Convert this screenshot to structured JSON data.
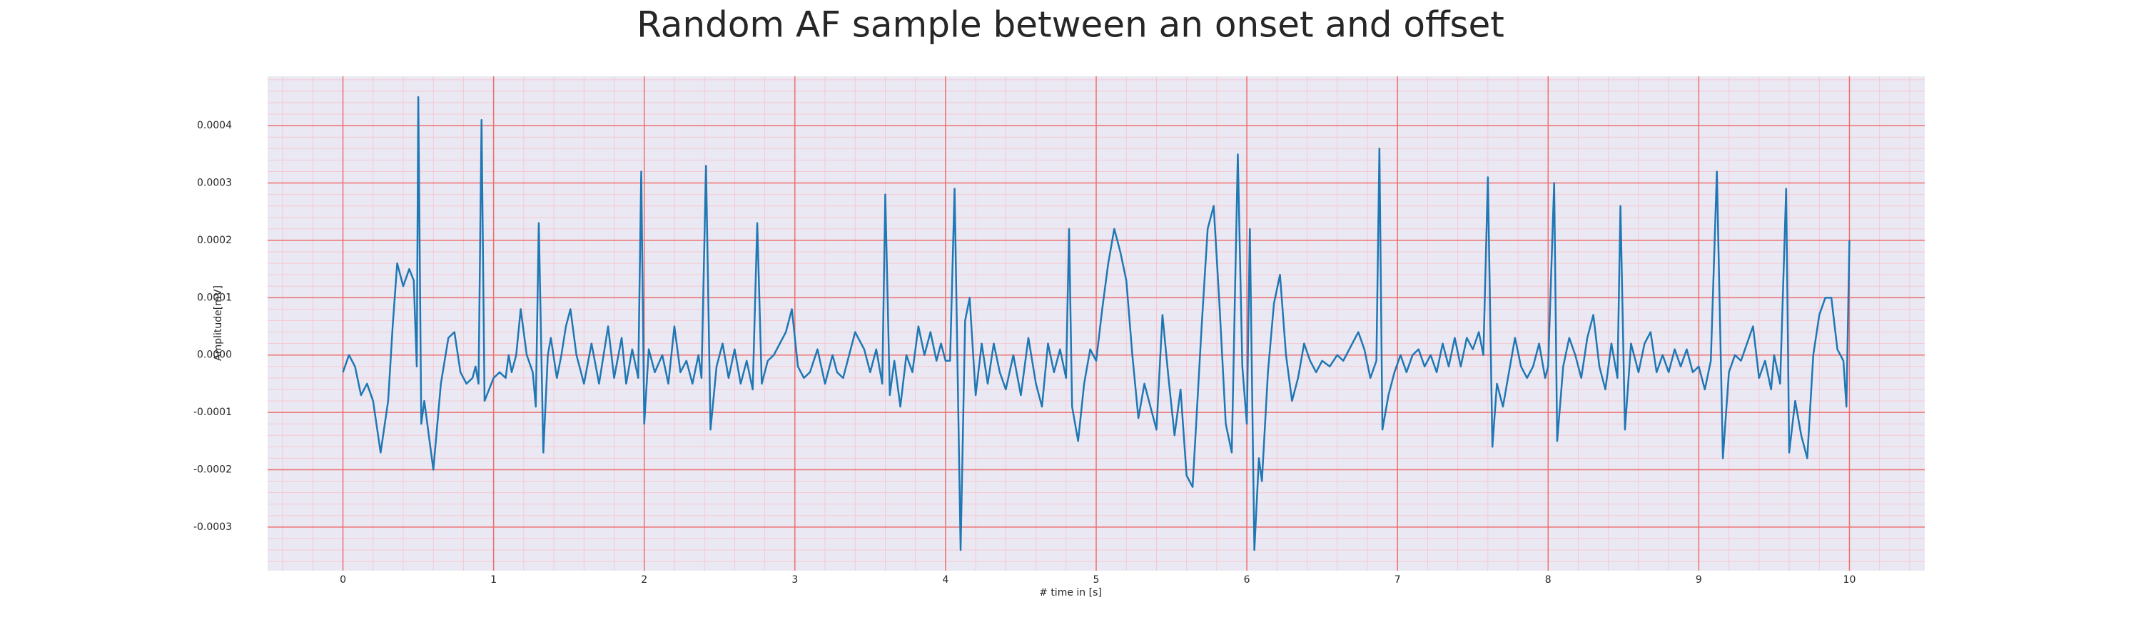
{
  "chart_data": {
    "type": "line",
    "title": "Random AF sample between an onset and offset",
    "x_label": "# time in [s]",
    "y_label": "Amplitude[mV]",
    "color": "#1f77b4",
    "grid": true,
    "minor_grid": true,
    "xlim": [
      -0.5,
      10.5
    ],
    "ylim": [
      -0.000376,
      0.000486
    ],
    "xticks": [
      0,
      1,
      2,
      3,
      4,
      5,
      6,
      7,
      8,
      9,
      10
    ],
    "yticks": [
      -0.0003,
      -0.0002,
      -0.0001,
      {
        "value": 0,
        "label": "0.0000"
      },
      0.0001,
      0.0002,
      0.0003,
      0.0004
    ],
    "x": [
      0,
      0.04,
      0.08,
      0.12,
      0.16,
      0.2,
      0.25,
      0.3,
      0.33,
      0.36,
      0.4,
      0.44,
      0.47,
      0.49,
      0.5,
      0.52,
      0.54,
      0.56,
      0.6,
      0.65,
      0.7,
      0.74,
      0.78,
      0.82,
      0.86,
      0.88,
      0.9,
      0.92,
      0.94,
      0.97,
      1.0,
      1.04,
      1.08,
      1.1,
      1.12,
      1.15,
      1.18,
      1.22,
      1.26,
      1.28,
      1.3,
      1.33,
      1.36,
      1.38,
      1.42,
      1.45,
      1.48,
      1.51,
      1.55,
      1.6,
      1.65,
      1.7,
      1.76,
      1.8,
      1.85,
      1.88,
      1.92,
      1.96,
      1.98,
      2.0,
      2.03,
      2.07,
      2.12,
      2.16,
      2.2,
      2.24,
      2.28,
      2.32,
      2.36,
      2.38,
      2.41,
      2.44,
      2.48,
      2.52,
      2.56,
      2.6,
      2.64,
      2.68,
      2.72,
      2.75,
      2.78,
      2.82,
      2.86,
      2.9,
      2.94,
      2.98,
      3.02,
      3.06,
      3.1,
      3.15,
      3.2,
      3.25,
      3.28,
      3.32,
      3.4,
      3.46,
      3.5,
      3.54,
      3.58,
      3.6,
      3.63,
      3.66,
      3.7,
      3.74,
      3.78,
      3.82,
      3.86,
      3.9,
      3.94,
      3.97,
      4.0,
      4.03,
      4.06,
      4.1,
      4.13,
      4.16,
      4.2,
      4.24,
      4.28,
      4.32,
      4.36,
      4.4,
      4.45,
      4.5,
      4.55,
      4.6,
      4.64,
      4.68,
      4.72,
      4.76,
      4.8,
      4.82,
      4.84,
      4.88,
      4.92,
      4.96,
      5.0,
      5.04,
      5.08,
      5.12,
      5.16,
      5.2,
      5.24,
      5.28,
      5.32,
      5.36,
      5.4,
      5.44,
      5.48,
      5.52,
      5.56,
      5.6,
      5.64,
      5.7,
      5.74,
      5.78,
      5.82,
      5.86,
      5.9,
      5.94,
      5.97,
      6.0,
      6.02,
      6.05,
      6.08,
      6.1,
      6.14,
      6.18,
      6.22,
      6.26,
      6.3,
      6.34,
      6.38,
      6.42,
      6.46,
      6.5,
      6.55,
      6.6,
      6.64,
      6.7,
      6.74,
      6.78,
      6.82,
      6.86,
      6.88,
      6.9,
      6.94,
      6.98,
      7.02,
      7.06,
      7.1,
      7.14,
      7.18,
      7.22,
      7.26,
      7.3,
      7.34,
      7.38,
      7.42,
      7.46,
      7.5,
      7.54,
      7.57,
      7.6,
      7.63,
      7.66,
      7.7,
      7.74,
      7.78,
      7.82,
      7.86,
      7.9,
      7.94,
      7.98,
      8.0,
      8.04,
      8.06,
      8.1,
      8.14,
      8.18,
      8.22,
      8.26,
      8.3,
      8.34,
      8.38,
      8.42,
      8.46,
      8.48,
      8.51,
      8.55,
      8.6,
      8.64,
      8.68,
      8.72,
      8.76,
      8.8,
      8.84,
      8.88,
      8.92,
      8.96,
      9.0,
      9.04,
      9.08,
      9.12,
      9.16,
      9.2,
      9.24,
      9.28,
      9.32,
      9.36,
      9.4,
      9.44,
      9.48,
      9.5,
      9.54,
      9.58,
      9.6,
      9.64,
      9.68,
      9.72,
      9.76,
      9.8,
      9.84,
      9.88,
      9.92,
      9.96,
      9.98,
      10.0
    ],
    "values": [
      -3e-05,
      0.0,
      -2e-05,
      -7e-05,
      -5e-05,
      -8e-05,
      -0.00017,
      -8e-05,
      5e-05,
      0.00016,
      0.00012,
      0.00015,
      0.00013,
      -2e-05,
      0.00045,
      -0.00012,
      -8e-05,
      -0.00012,
      -0.0002,
      -5e-05,
      3e-05,
      4e-05,
      -3e-05,
      -5e-05,
      -4e-05,
      -2e-05,
      -5e-05,
      0.00041,
      -8e-05,
      -6e-05,
      -4e-05,
      -3e-05,
      -4e-05,
      0.0,
      -3e-05,
      0.0,
      8e-05,
      0.0,
      -3e-05,
      -9e-05,
      0.00023,
      -0.00017,
      0.0,
      3e-05,
      -4e-05,
      0.0,
      5e-05,
      8e-05,
      0.0,
      -5e-05,
      2e-05,
      -5e-05,
      5e-05,
      -4e-05,
      3e-05,
      -5e-05,
      1e-05,
      -4e-05,
      0.00032,
      -0.00012,
      1e-05,
      -3e-05,
      0.0,
      -5e-05,
      5e-05,
      -3e-05,
      -1e-05,
      -5e-05,
      0.0,
      -4e-05,
      0.00033,
      -0.00013,
      -2e-05,
      2e-05,
      -4e-05,
      1e-05,
      -5e-05,
      -1e-05,
      -6e-05,
      0.00023,
      -5e-05,
      -1e-05,
      0.0,
      2e-05,
      4e-05,
      8e-05,
      -2e-05,
      -4e-05,
      -3e-05,
      1e-05,
      -5e-05,
      0.0,
      -3e-05,
      -4e-05,
      4e-05,
      1e-05,
      -3e-05,
      1e-05,
      -5e-05,
      0.00028,
      -7e-05,
      -1e-05,
      -9e-05,
      0.0,
      -3e-05,
      5e-05,
      0.0,
      4e-05,
      -1e-05,
      2e-05,
      -1e-05,
      -1e-05,
      0.00029,
      -0.00034,
      6e-05,
      0.0001,
      -7e-05,
      2e-05,
      -5e-05,
      2e-05,
      -3e-05,
      -6e-05,
      0.0,
      -7e-05,
      3e-05,
      -5e-05,
      -9e-05,
      2e-05,
      -3e-05,
      1e-05,
      -4e-05,
      0.00022,
      -9e-05,
      -0.00015,
      -5e-05,
      1e-05,
      -1e-05,
      8e-05,
      0.00016,
      0.00022,
      0.00018,
      0.00013,
      0.0,
      -0.00011,
      -5e-05,
      -9e-05,
      -0.00013,
      7e-05,
      -4e-05,
      -0.00014,
      -6e-05,
      -0.00021,
      -0.00023,
      5e-05,
      0.00022,
      0.00026,
      8e-05,
      -0.00012,
      -0.00017,
      0.00035,
      -2e-05,
      -0.00012,
      0.00022,
      -0.00034,
      -0.00018,
      -0.00022,
      -3e-05,
      9e-05,
      0.00014,
      0.0,
      -8e-05,
      -4e-05,
      2e-05,
      -1e-05,
      -3e-05,
      -1e-05,
      -2e-05,
      0.0,
      -1e-05,
      2e-05,
      4e-05,
      1e-05,
      -4e-05,
      -1e-05,
      0.00036,
      -0.00013,
      -7e-05,
      -3e-05,
      0.0,
      -3e-05,
      0.0,
      1e-05,
      -2e-05,
      0.0,
      -3e-05,
      2e-05,
      -2e-05,
      3e-05,
      -2e-05,
      3e-05,
      1e-05,
      4e-05,
      0.0,
      0.00031,
      -0.00016,
      -5e-05,
      -9e-05,
      -3e-05,
      3e-05,
      -2e-05,
      -4e-05,
      -2e-05,
      2e-05,
      -4e-05,
      -2e-05,
      0.0003,
      -0.00015,
      -2e-05,
      3e-05,
      0.0,
      -4e-05,
      3e-05,
      7e-05,
      -2e-05,
      -6e-05,
      2e-05,
      -4e-05,
      0.00026,
      -0.00013,
      2e-05,
      -3e-05,
      2e-05,
      4e-05,
      -3e-05,
      0.0,
      -3e-05,
      1e-05,
      -2e-05,
      1e-05,
      -3e-05,
      -2e-05,
      -6e-05,
      -1e-05,
      0.00032,
      -0.00018,
      -3e-05,
      0.0,
      -1e-05,
      2e-05,
      5e-05,
      -4e-05,
      -1e-05,
      -6e-05,
      0.0,
      -5e-05,
      0.00029,
      -0.00017,
      -8e-05,
      -0.00014,
      -0.00018,
      0.0,
      7e-05,
      0.0001,
      0.0001,
      1e-05,
      -1e-05,
      -9e-05,
      0.0002
    ]
  }
}
